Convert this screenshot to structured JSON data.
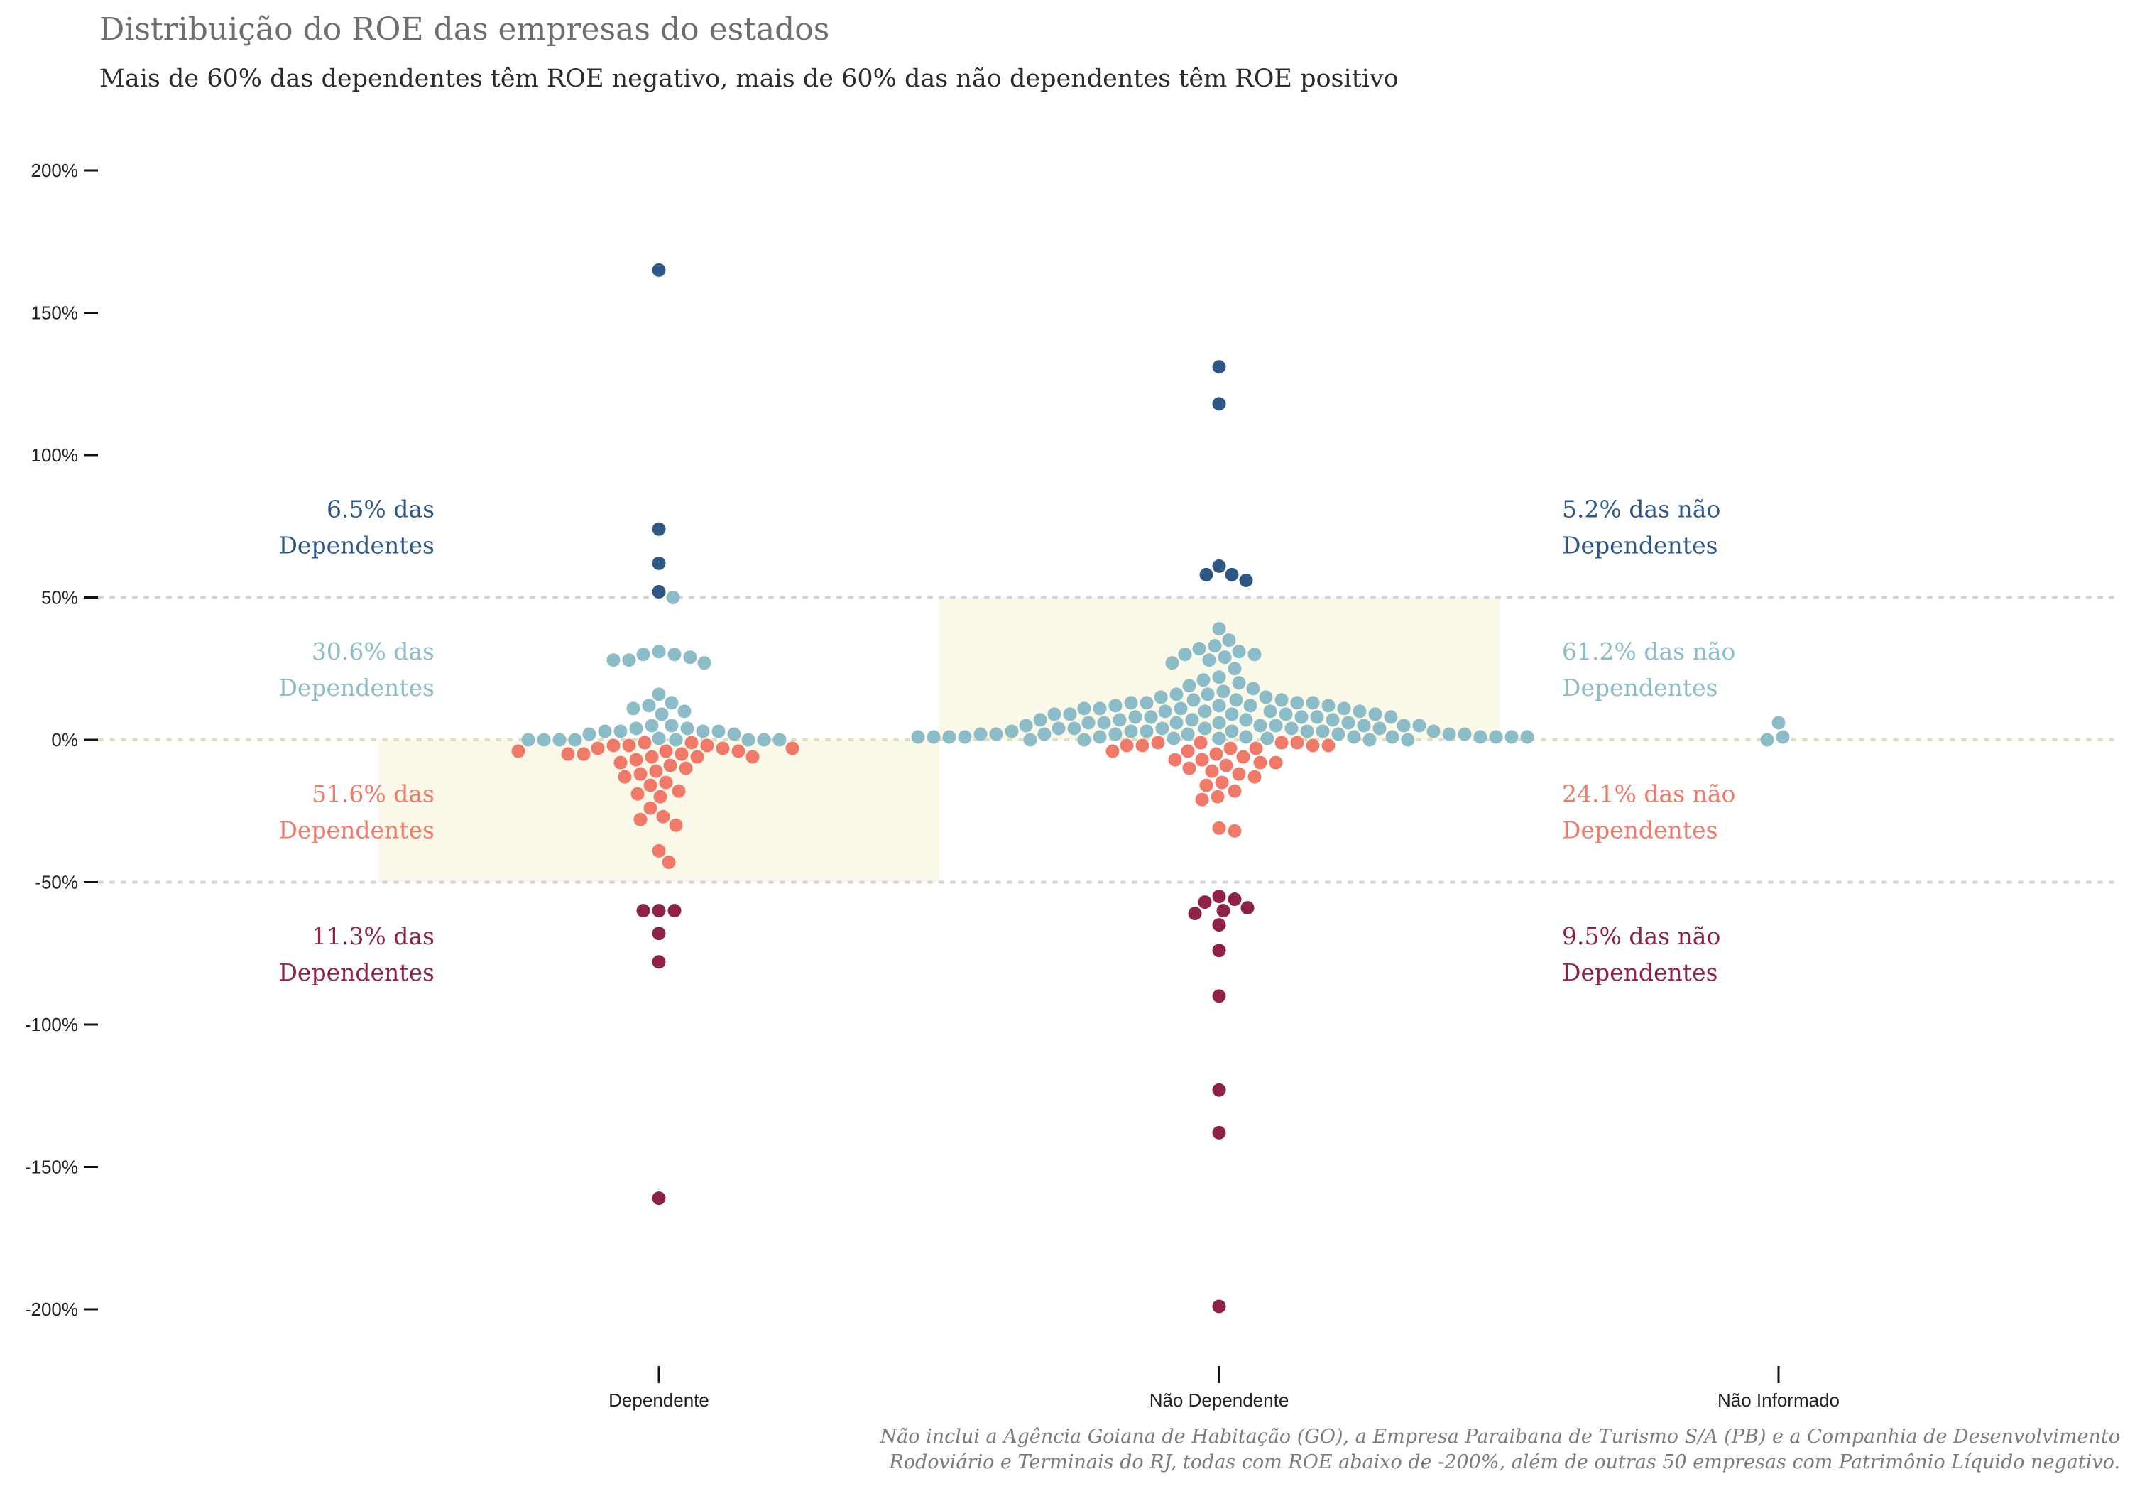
{
  "chart_data": {
    "type": "scatter",
    "title": "Distribuição do ROE das empresas do estados",
    "subtitle": "Mais de 60% das dependentes têm ROE negativo, mais de 60% das não dependentes têm ROE positivo",
    "xlabel": "",
    "ylabel": "",
    "categories": [
      "Dependente",
      "Não Dependente",
      "Não Informado"
    ],
    "ylim": [
      -200,
      200
    ],
    "yticks": [
      {
        "value": 200,
        "label": "200%"
      },
      {
        "value": 150,
        "label": "150%"
      },
      {
        "value": 100,
        "label": "100%"
      },
      {
        "value": 50,
        "label": "50%"
      },
      {
        "value": 0,
        "label": "0%"
      },
      {
        "value": -50,
        "label": "-50%"
      },
      {
        "value": -100,
        "label": "-100%"
      },
      {
        "value": -150,
        "label": "-150%"
      },
      {
        "value": -200,
        "label": "-200%"
      }
    ],
    "reference_lines": [
      50,
      0,
      -50
    ],
    "highlight_bands": [
      {
        "category": "Dependente",
        "from": -50,
        "to": 0
      },
      {
        "category": "Não Dependente",
        "from": 0,
        "to": 50
      }
    ],
    "bin_colors": {
      "above_50": "#2f5785",
      "0_to_50": "#8cbcc7",
      "-50_to_0": "#f07a6a",
      "below_-50": "#8e2148"
    },
    "series": [
      {
        "category": "Dependente",
        "values": [
          165,
          74,
          62,
          52,
          50,
          31,
          30,
          30,
          29,
          28,
          28,
          27,
          16,
          13,
          12,
          11,
          10,
          9,
          5,
          5,
          4,
          4,
          3,
          3,
          3,
          3,
          2,
          2,
          0.5,
          0,
          0,
          0,
          0,
          0,
          0,
          0,
          0,
          -1,
          -1,
          -2,
          -2,
          -2,
          -3,
          -3,
          -3,
          -4,
          -4,
          -4,
          -5,
          -5,
          -5,
          -6,
          -6,
          -6,
          -7,
          -8,
          -9,
          -10,
          -11,
          -12,
          -13,
          -15,
          -16,
          -18,
          -19,
          -20,
          -24,
          -27,
          -28,
          -30,
          -39,
          -43,
          -60,
          -60,
          -60,
          -68,
          -78,
          -161
        ]
      },
      {
        "category": "Não Dependente",
        "values": [
          131,
          118,
          61,
          58,
          58,
          56,
          39,
          35,
          33,
          32,
          31,
          30,
          30,
          29,
          28,
          27,
          25,
          22,
          21,
          20,
          19,
          18,
          17,
          16,
          16,
          15,
          15,
          14,
          14,
          14,
          13,
          13,
          13,
          13,
          12,
          12,
          12,
          12,
          11,
          11,
          11,
          11,
          10,
          10,
          10,
          10,
          9,
          9,
          9,
          9,
          9,
          8,
          8,
          8,
          8,
          8,
          7,
          7,
          7,
          7,
          7,
          6,
          6,
          6,
          6,
          6,
          5,
          5,
          5,
          5,
          5,
          5,
          4,
          4,
          4,
          4,
          4,
          4,
          3,
          3,
          3,
          3,
          3,
          3,
          3,
          2,
          2,
          2,
          2,
          2,
          2,
          2,
          2,
          1,
          1,
          1,
          1,
          1,
          1,
          1,
          1,
          1,
          1,
          1,
          1,
          0.5,
          0.5,
          0.5,
          0,
          0,
          0,
          0,
          -1,
          -1,
          -1,
          -1,
          -2,
          -2,
          -2,
          -2,
          -3,
          -3,
          -4,
          -4,
          -5,
          -6,
          -7,
          -7,
          -8,
          -8,
          -9,
          -10,
          -11,
          -12,
          -13,
          -15,
          -16,
          -18,
          -20,
          -21,
          -31,
          -32,
          -55,
          -56,
          -57,
          -59,
          -60,
          -61,
          -65,
          -74,
          -90,
          -123,
          -138,
          -199
        ]
      },
      {
        "category": "Não Informado",
        "values": [
          6,
          1,
          0
        ]
      }
    ],
    "annotations": [
      {
        "category": "Dependente",
        "bin": "above_50",
        "value": 75,
        "lines": [
          "6.5% das",
          "Dependentes"
        ]
      },
      {
        "category": "Dependente",
        "bin": "0_to_50",
        "value": 25,
        "lines": [
          "30.6% das",
          "Dependentes"
        ]
      },
      {
        "category": "Dependente",
        "bin": "-50_to_0",
        "value": -25,
        "lines": [
          "51.6% das",
          "Dependentes"
        ]
      },
      {
        "category": "Dependente",
        "bin": "below_-50",
        "value": -75,
        "lines": [
          "11.3% das",
          "Dependentes"
        ]
      },
      {
        "category": "Não Dependente",
        "bin": "above_50",
        "value": 75,
        "lines": [
          "5.2% das não",
          "Dependentes"
        ]
      },
      {
        "category": "Não Dependente",
        "bin": "0_to_50",
        "value": 25,
        "lines": [
          "61.2% das não",
          "Dependentes"
        ]
      },
      {
        "category": "Não Dependente",
        "bin": "-50_to_0",
        "value": -25,
        "lines": [
          "24.1% das não",
          "Dependentes"
        ]
      },
      {
        "category": "Não Dependente",
        "bin": "below_-50",
        "value": -75,
        "lines": [
          "9.5% das não",
          "Dependentes"
        ]
      }
    ],
    "caption": [
      "Não inclui a Agência Goiana de Habitação (GO), a Empresa Paraibana de Turismo S/A (PB) e a Companhia de Desenvolvimento",
      "Rodoviário e Terminais do RJ, todas com ROE abaixo de -200%, além de outras 50 empresas com Patrimônio Líquido negativo."
    ],
    "grid": false,
    "legend": "none"
  }
}
